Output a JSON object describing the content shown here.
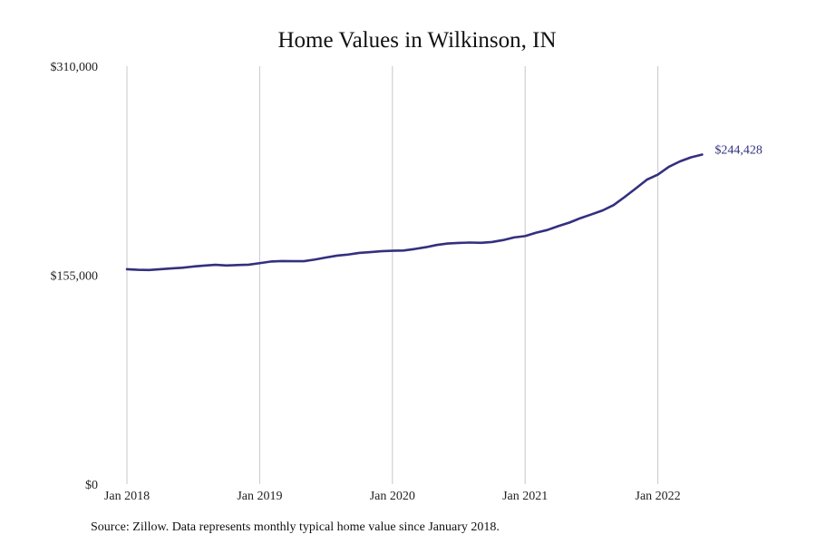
{
  "chart_data": {
    "type": "line",
    "title": "Home Values in Wilkinson, IN",
    "xlabel": "",
    "ylabel": "",
    "x_ticks": [
      {
        "label": "Jan 2018",
        "t": 0
      },
      {
        "label": "Jan 2019",
        "t": 12
      },
      {
        "label": "Jan 2020",
        "t": 24
      },
      {
        "label": "Jan 2021",
        "t": 36
      },
      {
        "label": "Jan 2022",
        "t": 48
      }
    ],
    "y_ticks": [
      {
        "label": "$0",
        "value": 0
      },
      {
        "label": "$155,000",
        "value": 155000
      },
      {
        "label": "$310,000",
        "value": 310000
      }
    ],
    "ylim": [
      0,
      310000
    ],
    "xlim": [
      0,
      53
    ],
    "grid": {
      "x": true,
      "y": false
    },
    "series": [
      {
        "name": "Typical home value",
        "color": "#33307f",
        "end_label": "$244,428",
        "x": [
          0,
          1,
          2,
          3,
          4,
          5,
          6,
          7,
          8,
          9,
          10,
          11,
          12,
          13,
          14,
          15,
          16,
          17,
          18,
          19,
          20,
          21,
          22,
          23,
          24,
          25,
          26,
          27,
          28,
          29,
          30,
          31,
          32,
          33,
          34,
          35,
          36,
          37,
          38,
          39,
          40,
          41,
          42,
          43,
          44,
          45,
          46,
          47,
          48,
          49,
          50,
          51,
          52
        ],
        "values": [
          159400,
          159000,
          158800,
          159400,
          160000,
          160500,
          161400,
          162100,
          162700,
          162200,
          162500,
          162800,
          163900,
          165100,
          165500,
          165400,
          165400,
          166600,
          168100,
          169500,
          170300,
          171500,
          172100,
          172800,
          173100,
          173300,
          174400,
          175700,
          177400,
          178500,
          178900,
          179200,
          179000,
          179600,
          181000,
          183000,
          184000,
          186500,
          188500,
          191400,
          194000,
          197300,
          200100,
          203000,
          207000,
          213000,
          219300,
          225800,
          229600,
          235400,
          239400,
          242400,
          244428
        ]
      }
    ],
    "source": "Source: Zillow. Data represents monthly typical home value since January 2018."
  }
}
